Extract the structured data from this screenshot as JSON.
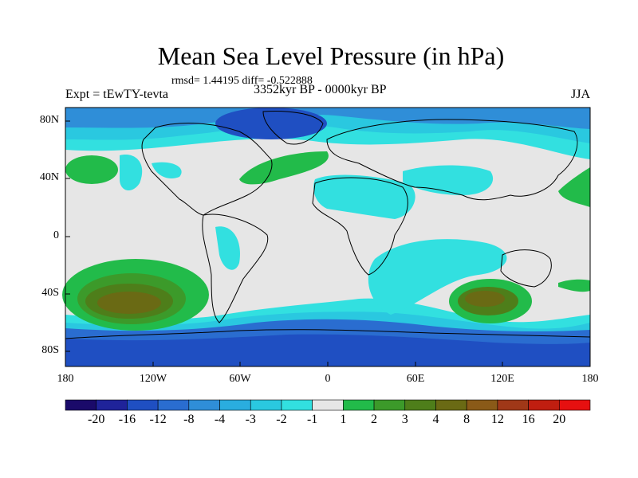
{
  "title": "Mean Sea Level Pressure (in hPa)",
  "stats": "rmsd= 1.44195 diff= -0.522888",
  "experiment": "Expt = tEwTY-tevta",
  "period": "3352kyr BP - 0000kyr BP",
  "season": "JJA",
  "lat_labels": [
    "80N",
    "40N",
    "0",
    "40S",
    "80S"
  ],
  "lon_labels": [
    "180",
    "120W",
    "60W",
    "0",
    "60E",
    "120E",
    "180"
  ],
  "colorbar": {
    "labels": [
      "-20",
      "-16",
      "-12",
      "-8",
      "-4",
      "-3",
      "-2",
      "-1",
      "1",
      "2",
      "3",
      "4",
      "8",
      "12",
      "16",
      "20"
    ],
    "colors": [
      "#1a0a6a",
      "#1f239a",
      "#1f4fc2",
      "#2a6dd0",
      "#2f8ed8",
      "#2aaddf",
      "#2ac8e0",
      "#32e0e0",
      "#e6e6e6",
      "#22bb4a",
      "#3c9a2a",
      "#4e7e1a",
      "#6a6a14",
      "#8a5a18",
      "#a03818",
      "#c01e10",
      "#e61010"
    ]
  }
}
